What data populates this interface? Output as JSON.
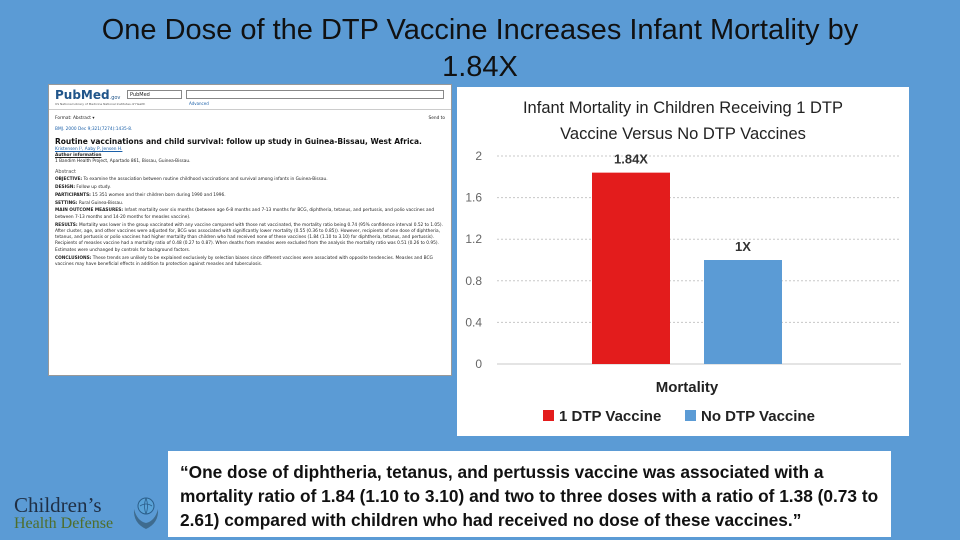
{
  "slide": {
    "title": "One Dose of the DTP Vaccine Increases Infant Mortality by 1.84X",
    "quote": "“One dose of diphtheria, tetanus, and pertussis vaccine was associated with a mortality ratio of 1.84 (1.10 to 3.10) and two to three doses with a ratio of 1.38 (0.73 to 2.61) compared with children who had received no dose of these vaccines.”"
  },
  "logo": {
    "line1": "Children’s",
    "line2": "Health Defense",
    "icon": "hands-globe-icon"
  },
  "pubmed": {
    "logo": "PubMed",
    "logo_suffix": ".gov",
    "subtitle": "US National Library of Medicine  National Institutes of Health",
    "db_select": "PubMed",
    "advanced": "Advanced",
    "format": "Format: Abstract ▾",
    "send_to": "Send to",
    "citation": "BMJ. 2000 Dec 9;321(7274):1435-8.",
    "article_title": "Routine vaccinations and child survival: follow up study in Guinea-Bissau, West Africa.",
    "authors": "Kristensen I¹, Aaby P, Jensen H.",
    "author_info": "Author information",
    "affiliation": "1   Bandim Health Project, Apartado 861, Bissau, Guinea-Bissau.",
    "abstract_heading": "Abstract",
    "sections": [
      {
        "label": "OBJECTIVE:",
        "text": "To examine the association between routine childhood vaccinations and survival among infants in Guinea-Bissau."
      },
      {
        "label": "DESIGN:",
        "text": "Follow up study."
      },
      {
        "label": "PARTICIPANTS:",
        "text": "15 351 women and their children born during 1990 and 1996."
      },
      {
        "label": "SETTING:",
        "text": "Rural Guinea-Bissau."
      },
      {
        "label": "MAIN OUTCOME MEASURES:",
        "text": "Infant mortality over six months (between age 6-8 months and 7-13 months for BCG, diphtheria, tetanus, and pertussis, and polio vaccines and between 7-13 months and 14-20 months for measles vaccine)."
      },
      {
        "label": "RESULTS:",
        "text": "Mortality was lower in the group vaccinated with any vaccine compared with those not vaccinated, the mortality ratio being 0.74 (95% confidence interval 0.52 to 1.05). After cluster, age, and other vaccines were adjusted for, BCG was associated with significantly lower mortality (0.55 (0.36 to 0.85)). However, recipients of one dose of diphtheria, tetanus, and pertussis or polio vaccines had higher mortality than children who had received none of these vaccines (1.84 (1.10 to 3.10) for diphtheria, tetanus, and pertussis). Recipients of measles vaccine had a mortality ratio of 0.48 (0.27 to 0.87). When deaths from measles were excluded from the analysis the mortality ratio was 0.51 (0.26 to 0.95). Estimates were unchanged by controls for background factors."
      },
      {
        "label": "CONCLUSIONS:",
        "text": "These trends are unlikely to be explained exclusively by selection biases since different vaccines were associated with opposite tendencies. Measles and BCG vaccines may have beneficial effects in addition to protection against measles and tuberculosis."
      }
    ]
  },
  "chart_data": {
    "type": "bar",
    "title": "Infant Mortality in Children Receiving 1 DTP Vaccine Versus No DTP Vaccines",
    "title_lines": [
      "Infant Mortality in Children Receiving 1 DTP",
      "Vaccine Versus No DTP Vaccines"
    ],
    "categories": [
      "Mortality"
    ],
    "series": [
      {
        "name": "1 DTP Vaccine",
        "values": [
          1.84
        ],
        "label": "1.84X",
        "color": "#e31c1c"
      },
      {
        "name": "No DTP Vaccine",
        "values": [
          1
        ],
        "label": "1X",
        "color": "#5b9bd5"
      }
    ],
    "xlabel": "Mortality",
    "ylabel": "",
    "ylim": [
      0,
      2
    ],
    "yticks": [
      0,
      0.4,
      0.8,
      1.2,
      1.6,
      2
    ],
    "ytick_labels": [
      "0",
      "0.4",
      "0.8",
      "1.2",
      "1.6",
      "2"
    ],
    "grid": true,
    "legend": "bottom"
  }
}
